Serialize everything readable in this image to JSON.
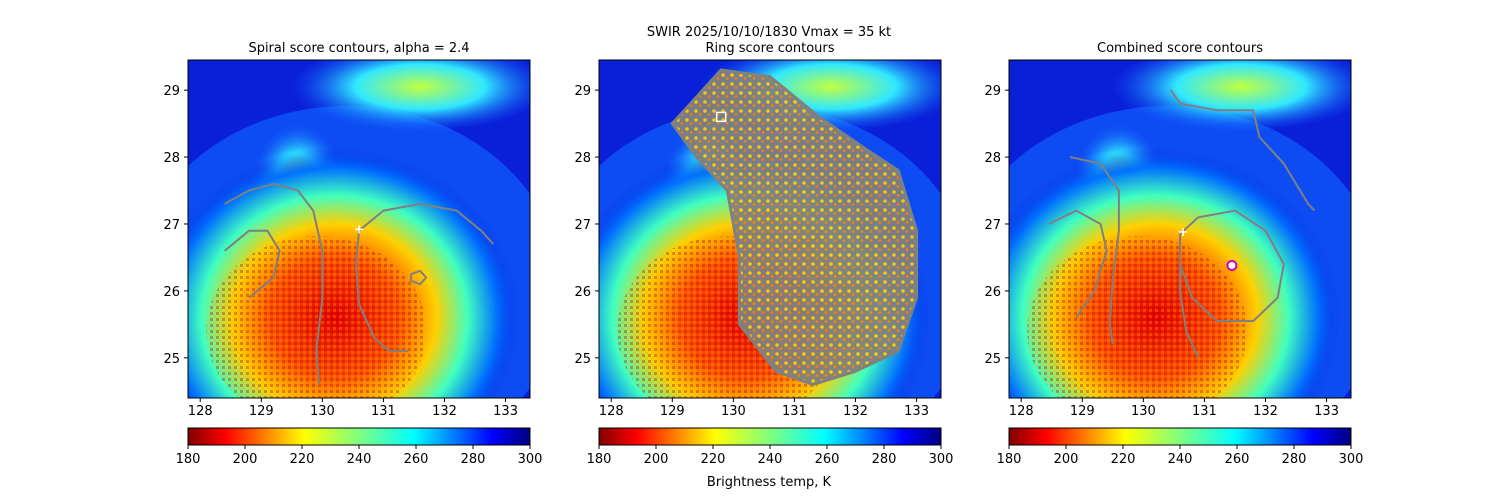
{
  "figure": {
    "suptitle_line1": "SWIR  2025/10/10/1830    Vmax = 35 kt",
    "colorbar_label": "Brightness temp, K"
  },
  "colors": {
    "contour": "#808080",
    "marker_ring": "#cc00cc",
    "colormap": "jet_reversed"
  },
  "chart_data": [
    {
      "type": "heatmap",
      "title": "Spiral score contours, alpha =  2.4",
      "xlim": [
        127.8,
        133.4
      ],
      "ylim": [
        24.4,
        29.45
      ],
      "xticks": [
        128,
        129,
        130,
        131,
        132,
        133
      ],
      "yticks": [
        25,
        26,
        27,
        28,
        29
      ],
      "colorbar": {
        "range": [
          180,
          300
        ],
        "ticks": [
          180,
          200,
          220,
          240,
          260,
          280,
          300
        ]
      },
      "contours": [
        {
          "points": [
            [
              128.4,
              27.3
            ],
            [
              128.8,
              27.5
            ],
            [
              129.2,
              27.6
            ],
            [
              129.6,
              27.5
            ],
            [
              129.85,
              27.2
            ],
            [
              130.0,
              26.6
            ],
            [
              130.0,
              25.9
            ],
            [
              129.9,
              25.1
            ],
            [
              129.95,
              24.6
            ]
          ]
        },
        {
          "points": [
            [
              128.4,
              26.6
            ],
            [
              128.8,
              26.9
            ],
            [
              129.1,
              26.9
            ],
            [
              129.3,
              26.6
            ],
            [
              129.2,
              26.2
            ],
            [
              128.8,
              25.9
            ]
          ]
        },
        {
          "points": [
            [
              130.6,
              26.9
            ],
            [
              131.0,
              27.2
            ],
            [
              131.6,
              27.3
            ],
            [
              132.2,
              27.2
            ],
            [
              132.6,
              26.9
            ],
            [
              132.8,
              26.7
            ]
          ]
        },
        {
          "points": [
            [
              130.6,
              26.9
            ],
            [
              130.55,
              26.4
            ],
            [
              130.6,
              25.8
            ],
            [
              130.85,
              25.3
            ],
            [
              131.1,
              25.1
            ],
            [
              131.4,
              25.1
            ]
          ]
        },
        {
          "points": [
            [
              131.45,
              26.25
            ],
            [
              131.6,
              26.3
            ],
            [
              131.7,
              26.2
            ],
            [
              131.6,
              26.1
            ],
            [
              131.45,
              26.15
            ],
            [
              131.45,
              26.25
            ]
          ]
        }
      ],
      "markers": [
        {
          "x": 130.6,
          "y": 26.92,
          "symbol": "plus"
        }
      ]
    },
    {
      "type": "heatmap",
      "title": "Ring score contours",
      "xlim": [
        127.8,
        133.4
      ],
      "ylim": [
        24.4,
        29.45
      ],
      "xticks": [
        128,
        129,
        130,
        131,
        132,
        133
      ],
      "yticks": [
        25,
        26,
        27,
        28,
        29
      ],
      "colorbar": {
        "range": [
          180,
          300
        ],
        "ticks": [
          180,
          200,
          220,
          240,
          260,
          280,
          300
        ]
      },
      "contour_region": [
        [
          129.3,
          28.8
        ],
        [
          129.8,
          29.3
        ],
        [
          130.6,
          29.2
        ],
        [
          131.4,
          28.6
        ],
        [
          132.2,
          28.1
        ],
        [
          132.7,
          27.8
        ],
        [
          133.0,
          26.9
        ],
        [
          133.0,
          25.9
        ],
        [
          132.7,
          25.1
        ],
        [
          132.0,
          24.8
        ],
        [
          131.3,
          24.6
        ],
        [
          130.7,
          24.8
        ],
        [
          130.1,
          25.5
        ],
        [
          130.1,
          26.5
        ],
        [
          129.9,
          27.5
        ],
        [
          129.4,
          28.0
        ],
        [
          129.0,
          28.5
        ]
      ],
      "markers": [
        {
          "x": 129.8,
          "y": 28.6,
          "symbol": "square"
        }
      ]
    },
    {
      "type": "heatmap",
      "title": "Combined score contours",
      "xlim": [
        127.8,
        133.4
      ],
      "ylim": [
        24.4,
        29.45
      ],
      "xticks": [
        128,
        129,
        130,
        131,
        132,
        133
      ],
      "yticks": [
        25,
        26,
        27,
        28,
        29
      ],
      "colorbar": {
        "range": [
          180,
          300
        ],
        "ticks": [
          180,
          200,
          220,
          240,
          260,
          280,
          300
        ]
      },
      "contours": [
        {
          "points": [
            [
              130.45,
              29.0
            ],
            [
              130.6,
              28.8
            ],
            [
              131.2,
              28.7
            ],
            [
              131.8,
              28.7
            ],
            [
              131.9,
              28.3
            ],
            [
              132.3,
              27.9
            ],
            [
              132.7,
              27.3
            ],
            [
              132.8,
              27.2
            ]
          ]
        },
        {
          "points": [
            [
              128.8,
              28.0
            ],
            [
              129.3,
              27.9
            ],
            [
              129.6,
              27.5
            ],
            [
              129.6,
              26.9
            ],
            [
              129.5,
              26.2
            ],
            [
              129.45,
              25.5
            ],
            [
              129.5,
              25.2
            ]
          ]
        },
        {
          "points": [
            [
              128.45,
              27.0
            ],
            [
              128.9,
              27.2
            ],
            [
              129.3,
              27.0
            ],
            [
              129.4,
              26.6
            ],
            [
              129.2,
              26.0
            ],
            [
              128.9,
              25.6
            ]
          ]
        },
        {
          "points": [
            [
              130.6,
              26.85
            ],
            [
              130.9,
              27.1
            ],
            [
              131.5,
              27.2
            ],
            [
              132.0,
              26.9
            ],
            [
              132.3,
              26.4
            ],
            [
              132.2,
              25.9
            ],
            [
              131.8,
              25.55
            ],
            [
              131.2,
              25.55
            ],
            [
              130.8,
              25.9
            ],
            [
              130.6,
              26.4
            ],
            [
              130.6,
              26.85
            ]
          ]
        },
        {
          "points": [
            [
              130.6,
              26.85
            ],
            [
              130.6,
              26.0
            ],
            [
              130.7,
              25.4
            ],
            [
              130.9,
              25.0
            ]
          ]
        }
      ],
      "markers": [
        {
          "x": 130.65,
          "y": 26.88,
          "symbol": "plus"
        },
        {
          "x": 131.45,
          "y": 26.38,
          "symbol": "ring"
        }
      ]
    }
  ]
}
